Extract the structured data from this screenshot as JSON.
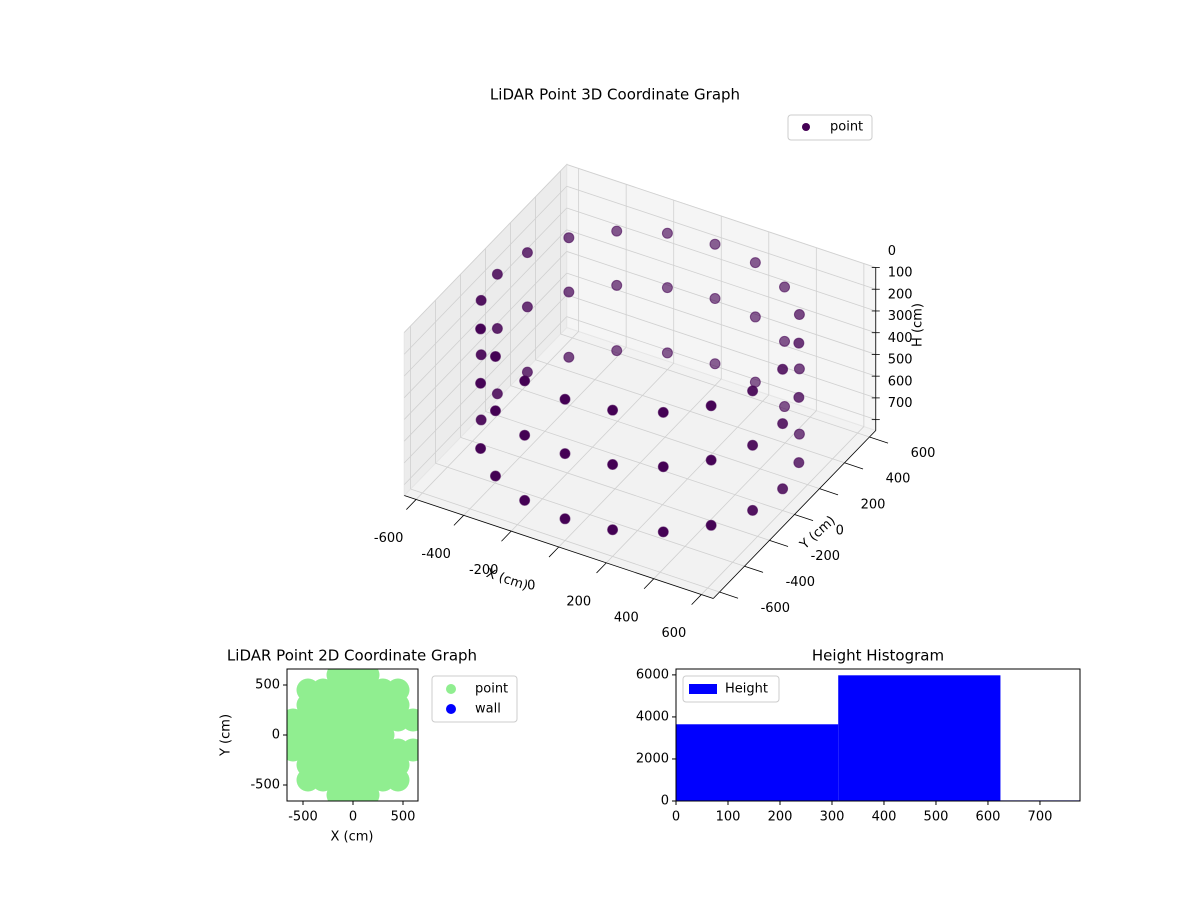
{
  "chart_data": [
    {
      "type": "scatter3d",
      "title": "LiDAR Point 3D Coordinate Graph",
      "xlabel": "X (cm)",
      "ylabel": "Y (cm)",
      "zlabel": "H (cm)",
      "xlim": [
        -650,
        650
      ],
      "ylim": [
        -650,
        650
      ],
      "zlim": [
        0,
        750
      ],
      "z_inverted": true,
      "xticks": [
        -600,
        -400,
        -200,
        0,
        200,
        400,
        600
      ],
      "yticks": [
        -600,
        -400,
        -200,
        0,
        200,
        400,
        600
      ],
      "zticks": [
        0,
        100,
        200,
        300,
        400,
        500,
        600,
        700
      ],
      "legend_loc": "upper right",
      "series": [
        {
          "name": "point",
          "color": "#440154",
          "x": [
            600,
            571,
            485,
            353,
            185,
            0,
            -185,
            -353,
            -485,
            -571,
            -600,
            -571,
            -485,
            -353,
            -185,
            0,
            185,
            353,
            485,
            571,
            600,
            571,
            485,
            353,
            185,
            0,
            -185,
            -353,
            -485,
            -571,
            -600,
            -571,
            -485,
            -353,
            -185,
            0,
            185,
            353,
            485,
            571,
            600,
            571,
            485,
            353,
            185,
            0,
            -185,
            -353,
            -485,
            -571,
            -600,
            -571,
            -485,
            -353,
            -185,
            0,
            185,
            353,
            485,
            571
          ],
          "y": [
            0,
            185,
            353,
            485,
            571,
            600,
            571,
            485,
            353,
            185,
            0,
            -185,
            -353,
            -485,
            -571,
            -600,
            -571,
            -485,
            -353,
            -185,
            0,
            185,
            353,
            485,
            571,
            600,
            571,
            485,
            353,
            185,
            0,
            -185,
            -353,
            -485,
            -571,
            -600,
            -571,
            -485,
            -353,
            -185,
            0,
            185,
            353,
            485,
            571,
            600,
            571,
            485,
            353,
            185,
            0,
            -185,
            -353,
            -485,
            -571,
            -600,
            -571,
            -485,
            -353,
            -185
          ],
          "z": [
            100,
            100,
            100,
            100,
            100,
            100,
            100,
            100,
            100,
            100,
            100,
            100,
            100,
            100,
            100,
            100,
            100,
            100,
            100,
            100,
            350,
            350,
            350,
            350,
            350,
            350,
            350,
            350,
            350,
            350,
            350,
            350,
            350,
            350,
            350,
            350,
            350,
            350,
            350,
            350,
            650,
            650,
            650,
            650,
            650,
            650,
            650,
            650,
            650,
            650,
            650,
            650,
            650,
            650,
            650,
            650,
            650,
            650,
            650,
            650
          ]
        }
      ]
    },
    {
      "type": "scatter",
      "title": "LiDAR Point 2D Coordinate Graph",
      "xlabel": "X (cm)",
      "ylabel": "Y (cm)",
      "xlim": [
        -660,
        650
      ],
      "ylim": [
        -660,
        660
      ],
      "xticks": [
        -500,
        0,
        500
      ],
      "yticks": [
        -500,
        0,
        500
      ],
      "legend_loc": "outside",
      "series": [
        {
          "name": "point",
          "color": "#90ee90",
          "x": [
            -150,
            0,
            150,
            -450,
            -300,
            -150,
            0,
            150,
            300,
            450,
            -450,
            -300,
            -150,
            0,
            150,
            300,
            450,
            -600,
            -450,
            -300,
            -150,
            0,
            150,
            300,
            450,
            600,
            -600,
            -450,
            -300,
            -150,
            0,
            150,
            300,
            -600,
            -450,
            -300,
            -150,
            0,
            150,
            300,
            450,
            600,
            -450,
            -300,
            -150,
            0,
            150,
            300,
            450,
            -450,
            -300,
            -150,
            0,
            150,
            300,
            450,
            -150,
            0,
            150
          ],
          "y": [
            600,
            600,
            600,
            450,
            450,
            450,
            450,
            450,
            450,
            450,
            300,
            300,
            300,
            300,
            300,
            300,
            300,
            150,
            150,
            150,
            150,
            150,
            150,
            150,
            150,
            150,
            0,
            0,
            0,
            0,
            0,
            0,
            0,
            -150,
            -150,
            -150,
            -150,
            -150,
            -150,
            -150,
            -150,
            -150,
            -300,
            -300,
            -300,
            -300,
            -300,
            -300,
            -300,
            -450,
            -450,
            -450,
            -450,
            -450,
            -450,
            -450,
            -600,
            -600,
            -600
          ]
        },
        {
          "name": "wall",
          "color": "#0000ff",
          "x": [],
          "y": []
        }
      ]
    },
    {
      "type": "histogram",
      "title": "Height Histogram",
      "bins": [
        0,
        312,
        624,
        936
      ],
      "xlim": [
        0,
        777
      ],
      "ylim": [
        0,
        6280
      ],
      "xticks": [
        0,
        100,
        200,
        300,
        400,
        500,
        600,
        700
      ],
      "yticks": [
        0,
        2000,
        4000,
        6000
      ],
      "legend_loc": "upper left",
      "series": [
        {
          "name": "Height",
          "color": "#0000ff",
          "values": [
            3650,
            5980,
            30
          ]
        }
      ]
    }
  ]
}
